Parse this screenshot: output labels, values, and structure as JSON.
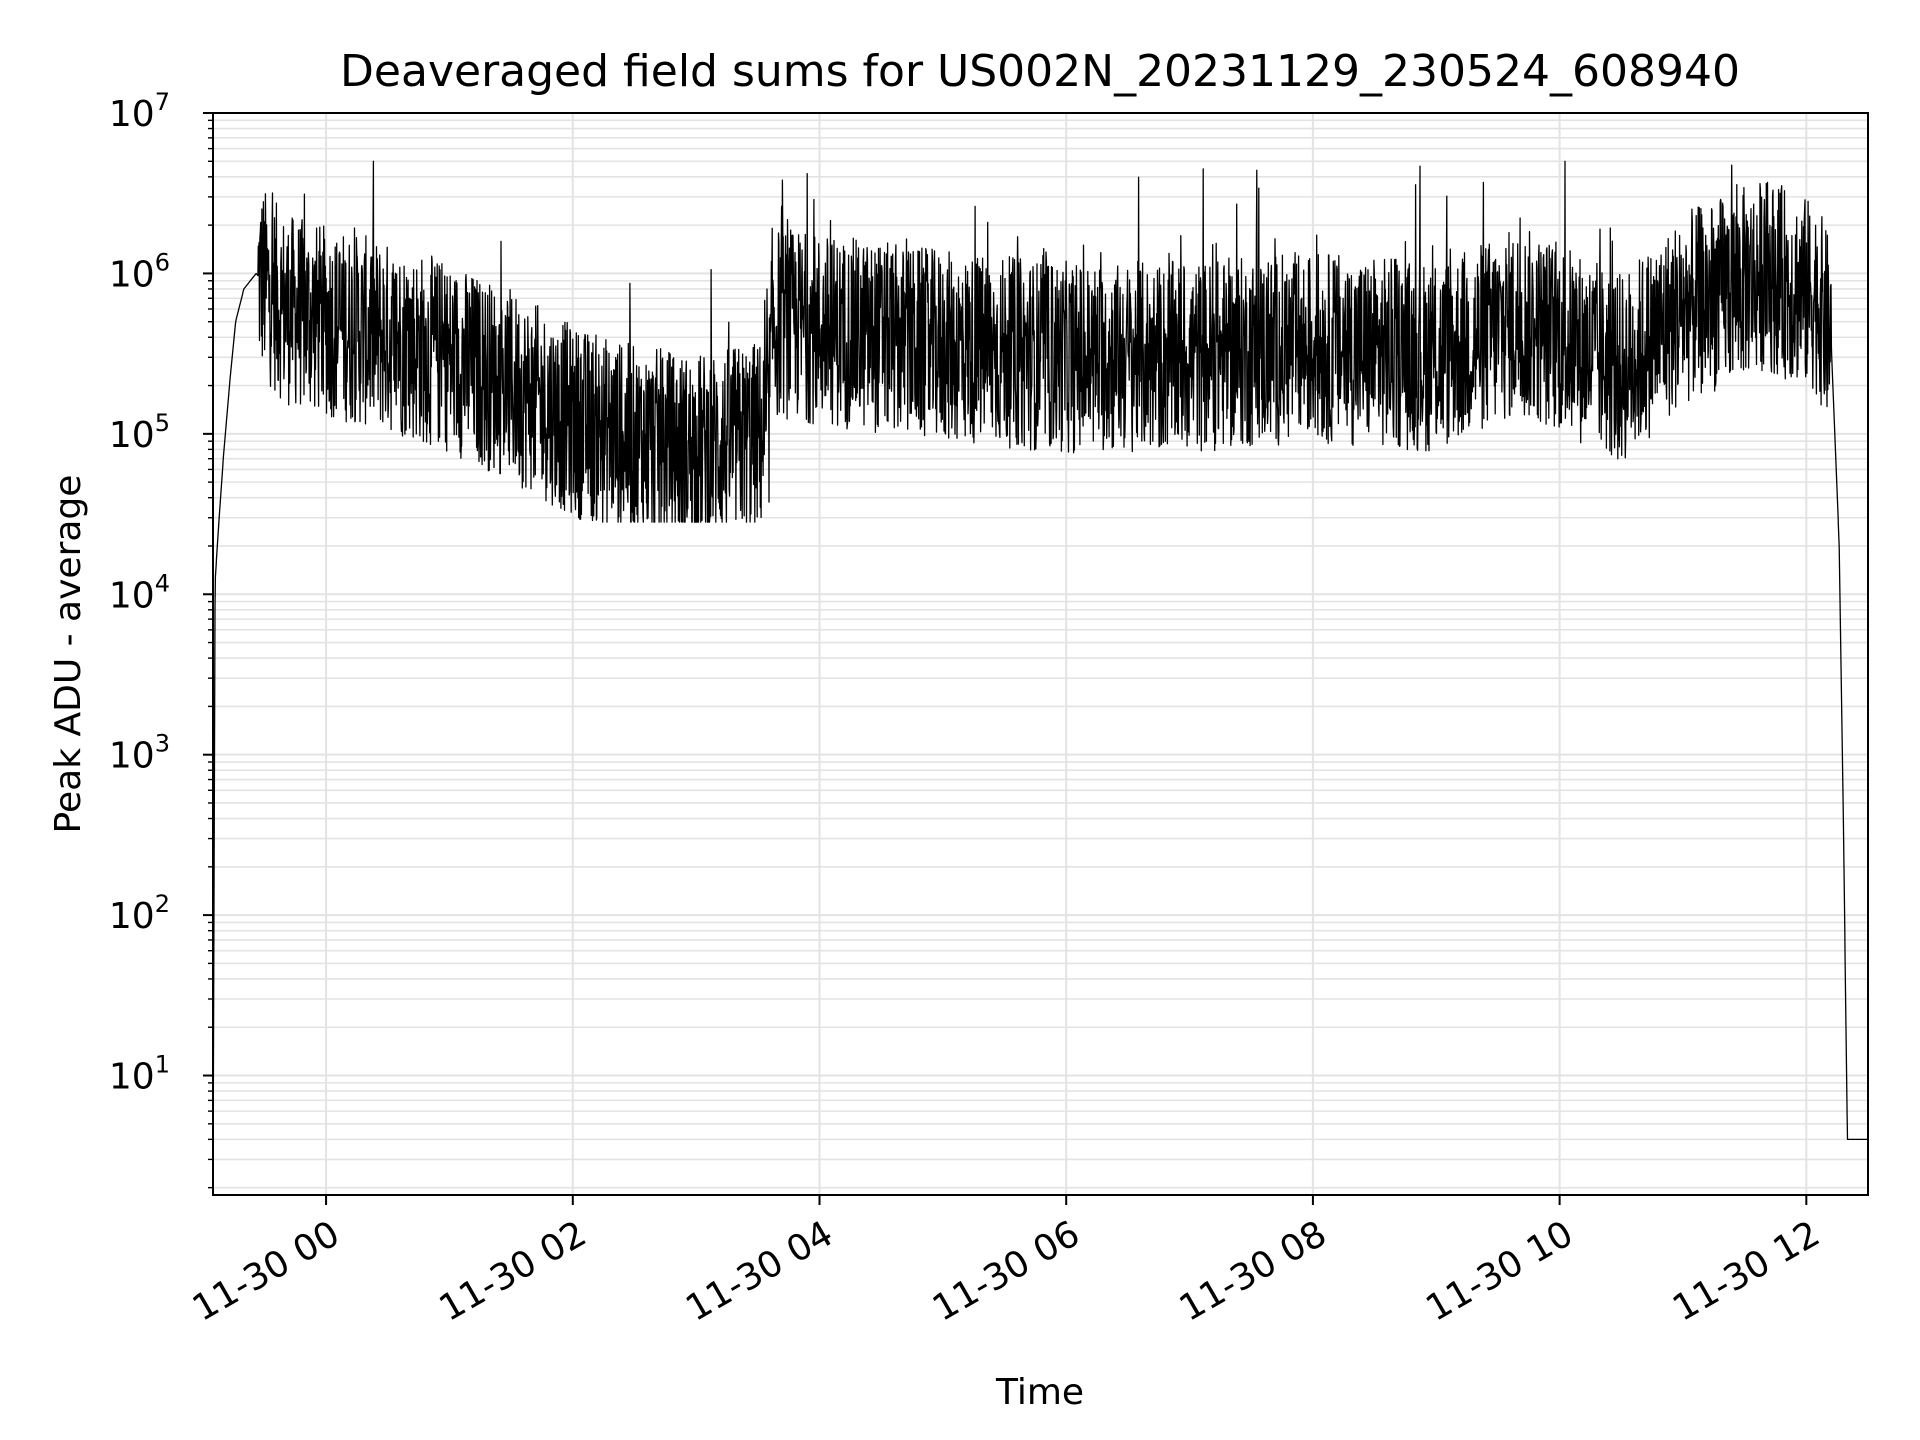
{
  "chart_data": {
    "type": "line",
    "title": "Deaveraged field sums for US002N_20231129_230524_608940",
    "xlabel": "Time",
    "ylabel": "Peak ADU - average",
    "yscale": "log",
    "ylim": [
      1.8,
      10000000
    ],
    "xlim": [
      "2023-11-29 23:05",
      "2023-11-30 12:30"
    ],
    "grid": true,
    "line_color": "#000000",
    "grid_color": "#e3e3e3",
    "x_ticks": [
      {
        "value": "2023-11-30 00:00",
        "label": "11-30 00"
      },
      {
        "value": "2023-11-30 02:00",
        "label": "11-30 02"
      },
      {
        "value": "2023-11-30 04:00",
        "label": "11-30 04"
      },
      {
        "value": "2023-11-30 06:00",
        "label": "11-30 06"
      },
      {
        "value": "2023-11-30 08:00",
        "label": "11-30 08"
      },
      {
        "value": "2023-11-30 10:00",
        "label": "11-30 10"
      },
      {
        "value": "2023-11-30 12:00",
        "label": "11-30 12"
      }
    ],
    "y_ticks": [
      {
        "value": 10,
        "base": "10",
        "exp": "1"
      },
      {
        "value": 100,
        "base": "10",
        "exp": "2"
      },
      {
        "value": 1000,
        "base": "10",
        "exp": "3"
      },
      {
        "value": 10000,
        "base": "10",
        "exp": "4"
      },
      {
        "value": 100000,
        "base": "10",
        "exp": "5"
      },
      {
        "value": 1000000,
        "base": "10",
        "exp": "6"
      },
      {
        "value": 10000000,
        "base": "10",
        "exp": "7"
      }
    ],
    "series": [
      {
        "values": [
          {
            "t": "2023-11-29 23:05",
            "y": 1.8
          },
          {
            "t": "2023-11-29 23:06",
            "y": 12000
          },
          {
            "t": "2023-11-29 23:08",
            "y": 30000
          },
          {
            "t": "2023-11-29 23:10",
            "y": 70000
          },
          {
            "t": "2023-11-29 23:13",
            "y": 200000
          },
          {
            "t": "2023-11-29 23:16",
            "y": 500000
          },
          {
            "t": "2023-11-29 23:20",
            "y": 800000
          },
          {
            "t": "2023-11-29 23:26",
            "y": 1000000
          },
          {
            "t": "2023-11-29 23:40",
            "y": 600000
          },
          {
            "t": "2023-11-30 00:00",
            "y": 500000
          },
          {
            "t": "2023-11-30 00:30",
            "y": 400000
          },
          {
            "t": "2023-11-30 01:00",
            "y": 300000
          },
          {
            "t": "2023-11-30 01:30",
            "y": 200000
          },
          {
            "t": "2023-11-30 02:00",
            "y": 120000
          },
          {
            "t": "2023-11-30 02:30",
            "y": 90000
          },
          {
            "t": "2023-11-30 03:00",
            "y": 80000
          },
          {
            "t": "2023-11-30 03:35",
            "y": 100000
          },
          {
            "t": "2023-11-30 03:37",
            "y": 500000
          },
          {
            "t": "2023-11-30 04:00",
            "y": 450000
          },
          {
            "t": "2023-11-30 05:00",
            "y": 350000
          },
          {
            "t": "2023-11-30 06:00",
            "y": 300000
          },
          {
            "t": "2023-11-30 07:00",
            "y": 300000
          },
          {
            "t": "2023-11-30 08:00",
            "y": 350000
          },
          {
            "t": "2023-11-30 09:00",
            "y": 300000
          },
          {
            "t": "2023-11-30 09:40",
            "y": 500000
          },
          {
            "t": "2023-11-30 10:00",
            "y": 400000
          },
          {
            "t": "2023-11-30 10:30",
            "y": 250000
          },
          {
            "t": "2023-11-30 11:00",
            "y": 600000
          },
          {
            "t": "2023-11-30 11:40",
            "y": 1000000
          },
          {
            "t": "2023-11-30 12:05",
            "y": 700000
          },
          {
            "t": "2023-11-30 12:12",
            "y": 400000
          },
          {
            "t": "2023-11-30 12:16",
            "y": 20000
          },
          {
            "t": "2023-11-30 12:18",
            "y": 400
          },
          {
            "t": "2023-11-30 12:20",
            "y": 4
          },
          {
            "t": "2023-11-30 12:30",
            "y": 4
          }
        ],
        "spikes_peak_max": 5000000
      }
    ]
  }
}
